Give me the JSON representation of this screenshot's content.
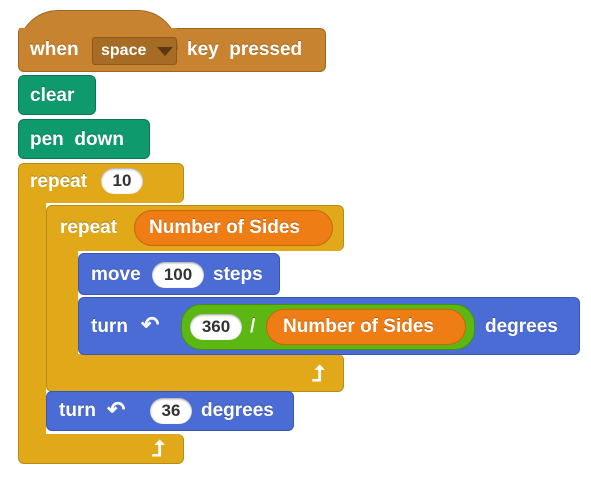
{
  "hat": {
    "when": "when",
    "key": "space",
    "suffix": "key  pressed"
  },
  "clear": "clear",
  "pen_down": "pen  down",
  "repeat_outer": {
    "label": "repeat",
    "count": "10"
  },
  "repeat_inner": {
    "label": "repeat",
    "variable": "Number of Sides"
  },
  "move": {
    "label": "move",
    "value": "100",
    "suffix": "steps"
  },
  "turn_inner": {
    "label": "turn",
    "numerator": "360",
    "divide": "/",
    "variable": "Number of Sides",
    "suffix": "degrees"
  },
  "turn_outer": {
    "label": "turn",
    "value": "36",
    "suffix": "degrees"
  },
  "icons": {
    "turn": "rotate-left-icon",
    "loop": "loop-arrow-icon",
    "dropdown": "chevron-down-icon"
  },
  "colors": {
    "events": "#c88330",
    "pen": "#0e9a6c",
    "control": "#e1a91a",
    "motion": "#4a6cd4",
    "operators": "#5cb712",
    "variables": "#ee7d16"
  }
}
